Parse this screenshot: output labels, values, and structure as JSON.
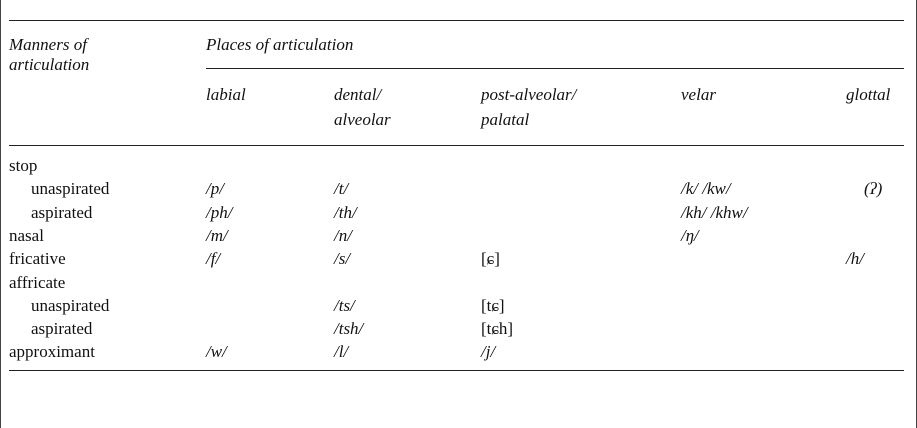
{
  "header": {
    "manners": [
      "Manners of",
      "articulation"
    ],
    "places": "Places of articulation",
    "columns": [
      [
        "labial"
      ],
      [
        "dental/",
        "alveolar"
      ],
      [
        "post-alveolar/",
        "palatal"
      ],
      [
        "velar"
      ],
      [
        "glottal"
      ]
    ]
  },
  "rows": [
    {
      "label": "stop",
      "sub": [
        {
          "label": "unaspirated",
          "cells": [
            "/p/",
            "/t/",
            null,
            "/k/ /kw/",
            "(ʔ)"
          ]
        },
        {
          "label": "aspirated",
          "cells": [
            "/ph/",
            "/th/",
            null,
            "/kh/ /khw/",
            null
          ]
        }
      ]
    },
    {
      "label": "nasal",
      "cells": [
        "/m/",
        "/n/",
        null,
        "/ŋ/",
        null
      ]
    },
    {
      "label": "fricative",
      "cells": [
        "/f/",
        "/s/",
        "[ɕ]",
        null,
        "/h/"
      ]
    },
    {
      "label": "affricate",
      "sub": [
        {
          "label": "unaspirated",
          "cells": [
            null,
            "/ts/",
            "[tɕ]",
            null,
            null
          ]
        },
        {
          "label": "aspirated",
          "cells": [
            null,
            "/tsh/",
            "[tɕh]",
            null,
            null
          ]
        }
      ]
    },
    {
      "label": "approximant",
      "cells": [
        "/w/",
        "/l/",
        "/j/",
        null,
        null
      ]
    }
  ]
}
